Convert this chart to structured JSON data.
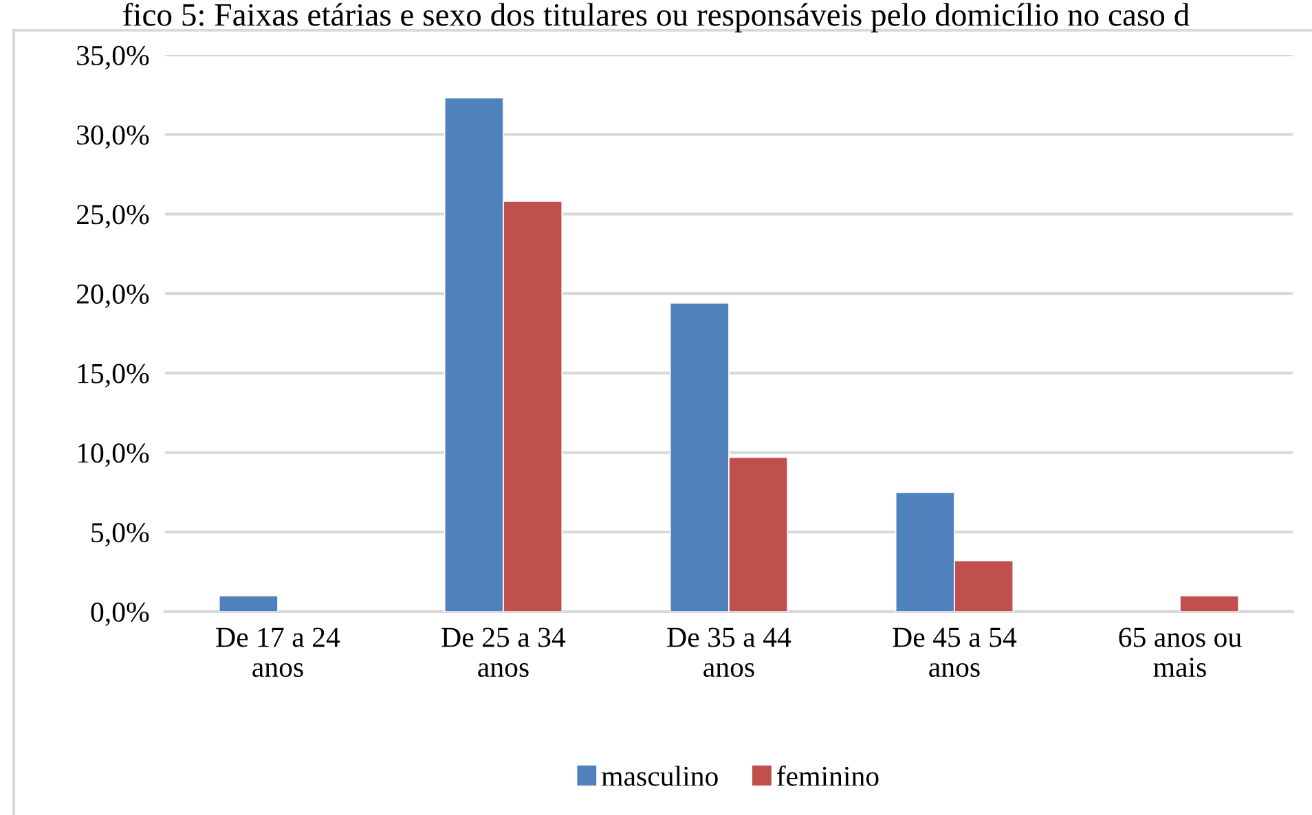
{
  "chart_data": {
    "type": "bar",
    "title": "fico 5: Faixas etárias e sexo dos titulares ou responsáveis pelo domicílio no caso d",
    "categories": [
      "De 17 a 24\nanos",
      "De 25 a 34\nanos",
      "De 35 a 44\nanos",
      "De 45 a 54\nanos",
      "65 anos ou\nmais"
    ],
    "series": [
      {
        "name": "masculino",
        "color": "#4f81bd",
        "values": [
          1.0,
          32.3,
          19.4,
          7.5,
          null
        ]
      },
      {
        "name": "feminino",
        "color": "#c0504d",
        "values": [
          null,
          25.8,
          9.7,
          3.2,
          1.0
        ]
      }
    ],
    "ylim": [
      0,
      35
    ],
    "yticks": [
      {
        "value": 0,
        "label": "0,0%"
      },
      {
        "value": 5,
        "label": "5,0%"
      },
      {
        "value": 10,
        "label": "10,0%"
      },
      {
        "value": 15,
        "label": "15,0%"
      },
      {
        "value": 20,
        "label": "20,0%"
      },
      {
        "value": 25,
        "label": "25,0%"
      },
      {
        "value": 30,
        "label": "30,0%"
      },
      {
        "value": 35,
        "label": "35,0%"
      }
    ],
    "grid": "y",
    "legend": "bottom"
  }
}
